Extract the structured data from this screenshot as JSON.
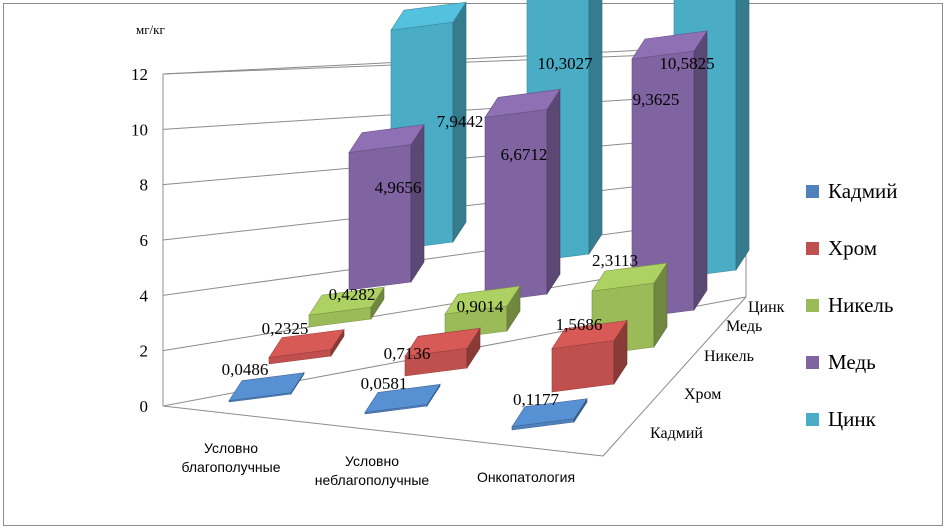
{
  "chart_data": {
    "type": "bar",
    "unit_label": "мг/кг",
    "categories": [
      "Условно благополучные",
      "Условно неблагополучные",
      "Онкопатология"
    ],
    "category_lines": [
      [
        "Условно",
        "благополучные"
      ],
      [
        "Условно",
        "неблагополучные"
      ],
      [
        "Онкопатология"
      ]
    ],
    "series": [
      {
        "name": "Кадмий",
        "values": [
          0.0486,
          0.0581,
          0.1177
        ],
        "labels": [
          "0,0486",
          "0,0581",
          "0,1177"
        ],
        "color": "#4F81BD"
      },
      {
        "name": "Хром",
        "values": [
          0.2325,
          0.7136,
          1.5686
        ],
        "labels": [
          "0,2325",
          "0,7136",
          "1,5686"
        ],
        "color": "#C0504D"
      },
      {
        "name": "Никель",
        "values": [
          0.4282,
          0.9014,
          2.3113
        ],
        "labels": [
          "0,4282",
          "0,9014",
          "2,3113"
        ],
        "color": "#9BBB59"
      },
      {
        "name": "Медь",
        "values": [
          4.9656,
          6.6712,
          9.3625
        ],
        "labels": [
          "4,9656",
          "6,6712",
          "9,3625"
        ],
        "color": "#8064A2"
      },
      {
        "name": "Цинк",
        "values": [
          7.9442,
          10.3027,
          10.5825
        ],
        "labels": [
          "7,9442",
          "10,3027",
          "10,5825"
        ],
        "color": "#4BACC6"
      }
    ],
    "depth_axis_labels": [
      "Кадмий",
      "Хром",
      "Никель",
      "Медь",
      "Цинк"
    ],
    "yticks": [
      "0",
      "2",
      "4",
      "6",
      "8",
      "10",
      "12"
    ],
    "ylim": [
      0,
      12
    ],
    "grid": true,
    "legend_position": "right",
    "projection": "3d"
  }
}
